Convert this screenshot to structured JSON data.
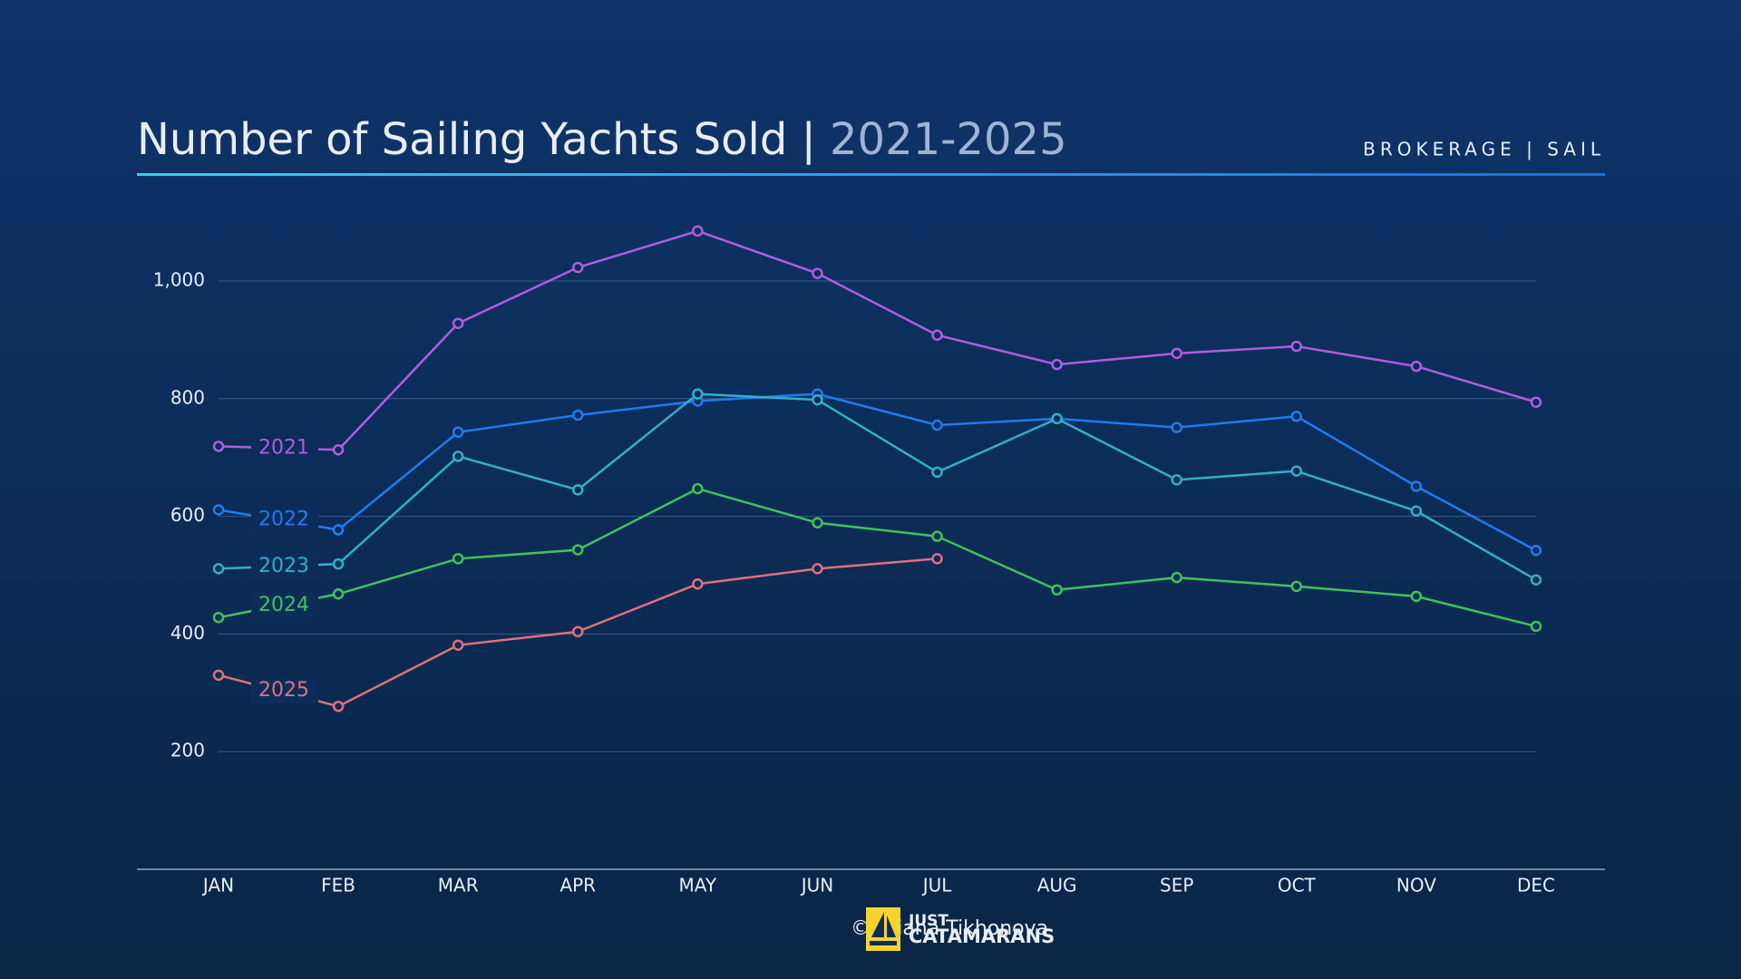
{
  "chart_data": {
    "type": "line",
    "title": "Number of Sailing Yachts Sold |",
    "title_years": "2021-2025",
    "subtitle": "BROKERAGE | SAIL",
    "categories": [
      "JAN",
      "FEB",
      "MAR",
      "APR",
      "MAY",
      "JUN",
      "JUL",
      "AUG",
      "SEP",
      "OCT",
      "NOV",
      "DEC"
    ],
    "series": [
      {
        "name": "2021",
        "color": "#b05ce0",
        "values": [
          719,
          713,
          928,
          1023,
          1085,
          1013,
          908,
          858,
          877,
          889,
          855,
          794
        ]
      },
      {
        "name": "2022",
        "color": "#1e7cf0",
        "values": [
          611,
          577,
          743,
          772,
          796,
          808,
          755,
          766,
          751,
          770,
          651,
          542
        ]
      },
      {
        "name": "2023",
        "color": "#2fb0c8",
        "values": [
          511,
          519,
          702,
          645,
          808,
          798,
          675,
          766,
          662,
          677,
          609,
          492
        ]
      },
      {
        "name": "2024",
        "color": "#3cc45a",
        "values": [
          428,
          468,
          528,
          543,
          647,
          589,
          566,
          475,
          496,
          481,
          464,
          413
        ]
      },
      {
        "name": "2025",
        "color": "#e0707a",
        "values": [
          330,
          277,
          381,
          404,
          485,
          511,
          528,
          null,
          null,
          null,
          null,
          null
        ]
      }
    ],
    "ylim": [
      0,
      1100
    ],
    "yticks": [
      200,
      400,
      600,
      {
        "value": 800,
        "label": "800"
      },
      {
        "value": 1000,
        "label": "1,000"
      }
    ],
    "grid": true,
    "footer": {
      "credit": "© Uliana Tikhonova",
      "logo_top": "JUST",
      "logo_bottom": "CATAMARANS"
    }
  }
}
